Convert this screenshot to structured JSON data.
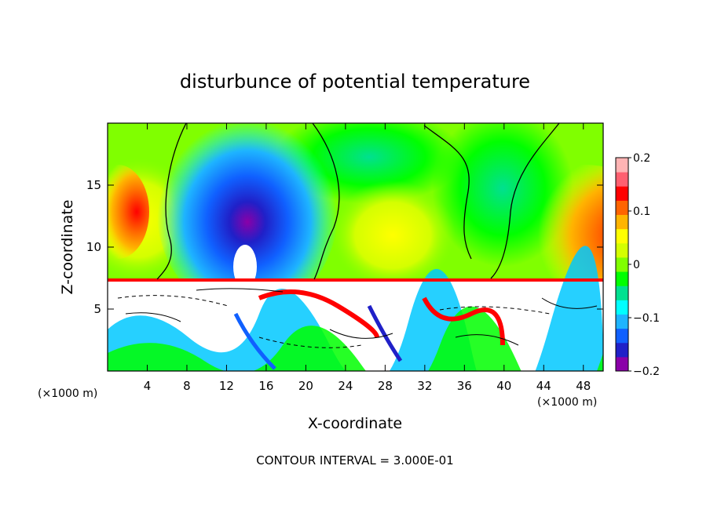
{
  "chart_data": {
    "type": "heatmap",
    "title": "disturbunce of potential temperature",
    "xlabel": "X-coordinate",
    "ylabel": "Z-coordinate",
    "x_unit_left": "(×1000 m)",
    "x_unit_right": "(×1000 m)",
    "xlim": [
      0,
      50
    ],
    "ylim": [
      0,
      20
    ],
    "x_ticks": [
      "4",
      "8",
      "12",
      "16",
      "20",
      "24",
      "28",
      "32",
      "36",
      "40",
      "44",
      "48"
    ],
    "y_ticks": [
      "5",
      "10",
      "15"
    ],
    "colorbar": {
      "range": [
        -0.2,
        0.2
      ],
      "tick_labels": [
        "0.2",
        "0.1",
        "0",
        "−0.1",
        "−0.2"
      ],
      "colors": [
        "#8a00a8",
        "#2020c8",
        "#1060ff",
        "#1eb4ff",
        "#00ffff",
        "#00e090",
        "#00ff00",
        "#80ff00",
        "#d4ff00",
        "#ffff00",
        "#ffb400",
        "#ff6400",
        "#ff0000",
        "#ff6070",
        "#ffb4b4"
      ]
    },
    "annotation": "CONTOUR INTERVAL = 3.000E-01"
  }
}
